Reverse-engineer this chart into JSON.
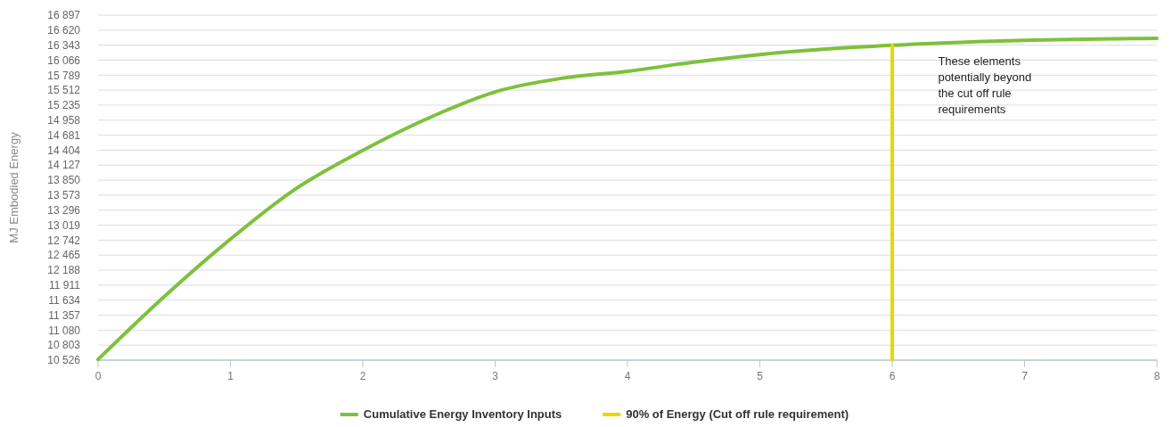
{
  "chart_data": {
    "type": "line",
    "ylabel": "MJ Embodied Energy",
    "xlim": [
      0,
      8
    ],
    "xticks": [
      0,
      1,
      2,
      3,
      4,
      5,
      6,
      7,
      8
    ],
    "ylim": [
      10526,
      16897
    ],
    "yticks": [
      {
        "value": 10526,
        "label": "10 526"
      },
      {
        "value": 10803,
        "label": "10 803"
      },
      {
        "value": 11080,
        "label": "11 080"
      },
      {
        "value": 11357,
        "label": "11 357"
      },
      {
        "value": 11634,
        "label": "11 634"
      },
      {
        "value": 11911,
        "label": "11 911"
      },
      {
        "value": 12188,
        "label": "12 188"
      },
      {
        "value": 12465,
        "label": "12 465"
      },
      {
        "value": 12742,
        "label": "12 742"
      },
      {
        "value": 13019,
        "label": "13 019"
      },
      {
        "value": 13296,
        "label": "13 296"
      },
      {
        "value": 13573,
        "label": "13 573"
      },
      {
        "value": 13850,
        "label": "13 850"
      },
      {
        "value": 14127,
        "label": "14 127"
      },
      {
        "value": 14404,
        "label": "14 404"
      },
      {
        "value": 14681,
        "label": "14 681"
      },
      {
        "value": 14958,
        "label": "14 958"
      },
      {
        "value": 15235,
        "label": "15 235"
      },
      {
        "value": 15512,
        "label": "15 512"
      },
      {
        "value": 15789,
        "label": "15 789"
      },
      {
        "value": 16066,
        "label": "16 066"
      },
      {
        "value": 16343,
        "label": "16 343"
      },
      {
        "value": 16620,
        "label": "16 620"
      },
      {
        "value": 16897,
        "label": "16 897"
      }
    ],
    "grid": "y",
    "legend": "bottom",
    "marker": "none",
    "line_style": "solid",
    "series": [
      {
        "name": "Cumulative Energy Inventory Inputs",
        "color": "#7dc13c",
        "x": [
          0,
          0.5,
          1,
          1.5,
          2,
          2.5,
          3,
          3.5,
          4,
          4.5,
          5,
          5.5,
          6,
          7,
          8
        ],
        "values": [
          10540,
          11700,
          12760,
          13700,
          14400,
          15000,
          15480,
          15730,
          15860,
          16030,
          16170,
          16270,
          16340,
          16430,
          16470
        ]
      },
      {
        "name": "90% of Energy (Cut off rule requirement)",
        "color": "#e6d800",
        "x": [
          6,
          6
        ],
        "values": [
          10530,
          16340
        ]
      }
    ],
    "annotations": [
      "These elements potentially beyond the cut off rule requirements"
    ]
  }
}
